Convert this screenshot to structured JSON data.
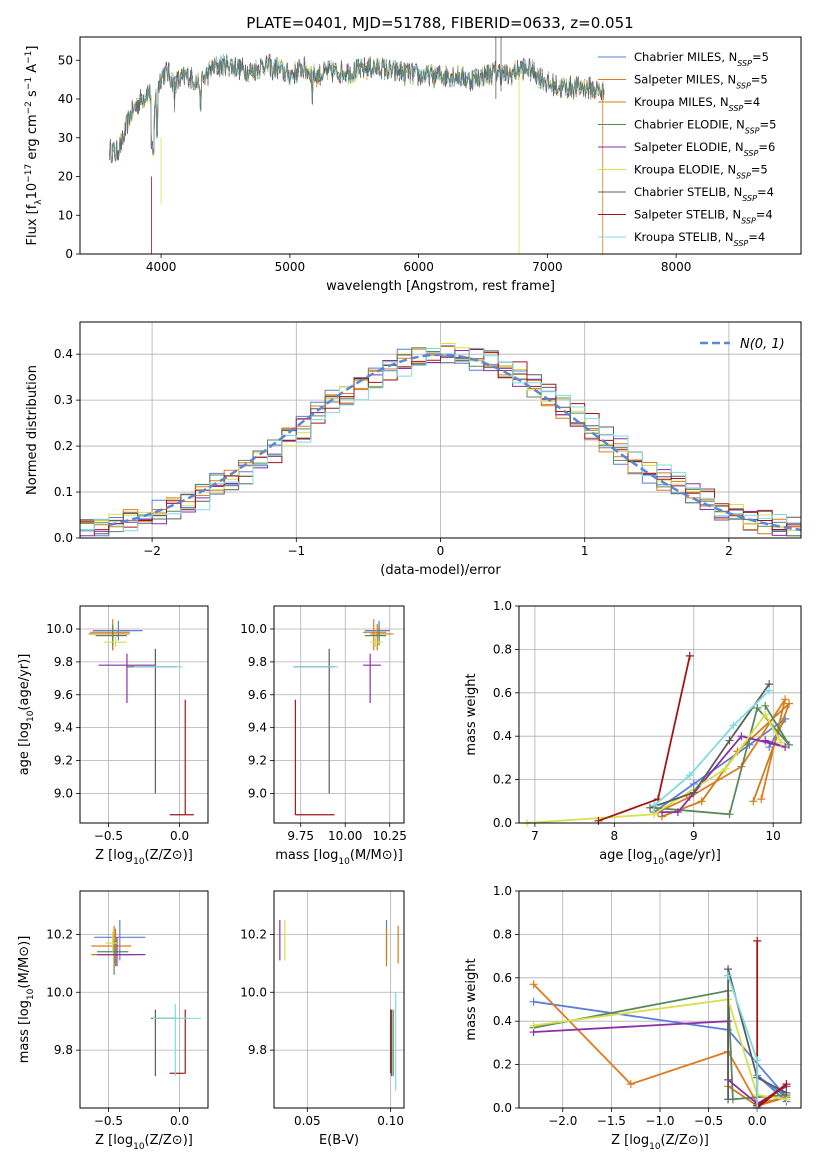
{
  "figure_title": "PLATE=0401, MJD=51788, FIBERID=0633, z=0.051",
  "fit_colors": [
    "#5b7fdb",
    "#e07a1f",
    "#cc7f17",
    "#5a8a5a",
    "#8c2fa8",
    "#d6e04a",
    "#5c5c5c",
    "#a31616",
    "#7fdbe0"
  ],
  "gaussian_color": "#5b87d6",
  "chart_data": [
    {
      "id": "spectrum",
      "type": "line",
      "xlabel": "wavelength [Angstrom, rest frame]",
      "ylabel": "Flux [f_λ10^-17 erg cm^-2 s^-1 A^-1]",
      "xlim": [
        3370,
        8970
      ],
      "ylim": [
        0,
        56
      ],
      "xticks": [
        4000,
        5000,
        6000,
        7000,
        8000
      ],
      "yticks": [
        0,
        10,
        20,
        30,
        40,
        50
      ],
      "grid": false,
      "legend_position": "top-right",
      "data_wavelength_range": [
        3600,
        7440
      ],
      "continuum": {
        "x": [
          3600,
          3650,
          3700,
          3750,
          3800,
          3850,
          3900,
          3950,
          4000,
          4050,
          4100,
          4200,
          4300,
          4400,
          4500,
          4600,
          4700,
          4800,
          4900,
          5000,
          5100,
          5200,
          5300,
          5400,
          5500,
          5600,
          5700,
          5800,
          5900,
          6000,
          6100,
          6200,
          6300,
          6400,
          6500,
          6600,
          6700,
          6800,
          6900,
          7000,
          7100,
          7200,
          7300,
          7400,
          7440
        ],
        "y": [
          27,
          26,
          29,
          35,
          38,
          40,
          42,
          39,
          46,
          47,
          44,
          46,
          44,
          48,
          49,
          48,
          47,
          49,
          48,
          46,
          48,
          46,
          47,
          47,
          47,
          48,
          48,
          47,
          47,
          46,
          46,
          46,
          46,
          45,
          46,
          47,
          46,
          48,
          47,
          44,
          43,
          43,
          43,
          42,
          42
        ]
      },
      "series": [
        {
          "name": "Chabrier MILES",
          "nssp": "5"
        },
        {
          "name": "Salpeter MILES",
          "nssp": "5"
        },
        {
          "name": "Kroupa MILES",
          "nssp": "4"
        },
        {
          "name": "Chabrier ELODIE",
          "nssp": "5"
        },
        {
          "name": "Salpeter ELODIE",
          "nssp": "6"
        },
        {
          "name": "Kroupa ELODIE",
          "nssp": "5"
        },
        {
          "name": "Chabrier STELIB",
          "nssp": "4"
        },
        {
          "name": "Salpeter STELIB",
          "nssp": "4"
        },
        {
          "name": "Kroupa STELIB",
          "nssp": "4"
        }
      ]
    },
    {
      "id": "residuals",
      "type": "histogram",
      "xlabel": "(data-model)/error",
      "ylabel": "Normed distribution",
      "xlim": [
        -2.5,
        2.5
      ],
      "ylim": [
        0,
        0.47
      ],
      "xticks": [
        -2,
        -1,
        0,
        1,
        2
      ],
      "yticks": [
        0.0,
        0.1,
        0.2,
        0.3,
        0.4
      ],
      "grid": true,
      "legend_position": "top-right",
      "legend_label": "N(0, 1)",
      "bin_width": 0.1
    },
    {
      "id": "age-vs-Z",
      "type": "errorbar",
      "xlabel": "Z [log10(Z/Z⊙)]",
      "ylabel": "age  [log10(age/yr)]",
      "xlim": [
        -0.7,
        0.2
      ],
      "ylim": [
        8.82,
        10.14
      ],
      "xticks": [
        -0.5,
        0.0
      ],
      "yticks": [
        9.0,
        9.2,
        9.4,
        9.6,
        9.8,
        10.0
      ],
      "grid": true,
      "points": [
        {
          "x": -0.43,
          "y": 9.99,
          "xerr": [
            0.18,
            0.17
          ],
          "yerr": [
            0.06,
            0.06
          ]
        },
        {
          "x": -0.47,
          "y": 9.98,
          "xerr": [
            0.16,
            0.12
          ],
          "yerr": [
            0.11,
            0.08
          ]
        },
        {
          "x": -0.47,
          "y": 9.97,
          "xerr": [
            0.17,
            0.12
          ],
          "yerr": [
            0.1,
            0.06
          ]
        },
        {
          "x": -0.47,
          "y": 9.96,
          "xerr": [
            0.12,
            0.1
          ],
          "yerr": [
            0.06,
            0.06
          ]
        },
        {
          "x": -0.37,
          "y": 9.78,
          "xerr": [
            0.2,
            0.2
          ],
          "yerr": [
            0.23,
            0.07
          ]
        },
        {
          "x": -0.45,
          "y": 9.92,
          "xerr": [
            0.08,
            0.08
          ],
          "yerr": [
            0.03,
            0.03
          ]
        },
        {
          "x": -0.17,
          "y": 9.77,
          "xerr": [
            0.2,
            0.15
          ],
          "yerr": [
            0.77,
            0.11
          ]
        },
        {
          "x": 0.04,
          "y": 8.87,
          "xerr": [
            0.11,
            0.06
          ],
          "yerr": [
            0.0,
            0.7
          ]
        },
        {
          "x": -0.16,
          "y": 9.77,
          "xerr": [
            0.16,
            0.18
          ],
          "yerr": [
            0.0,
            0.0
          ]
        }
      ]
    },
    {
      "id": "age-vs-mass",
      "type": "errorbar",
      "xlabel": "mass [log10(M/M⊙)]",
      "ylabel": "",
      "xlim": [
        9.6,
        10.33
      ],
      "ylim": [
        8.82,
        10.14
      ],
      "xticks": [
        9.75,
        10.0,
        10.25
      ],
      "yticks": [
        9.0,
        9.2,
        9.4,
        9.6,
        9.8,
        10.0
      ],
      "grid": true,
      "points": [
        {
          "x": 10.19,
          "y": 9.99,
          "xerr": [
            0.08,
            0.06
          ],
          "yerr": [
            0.06,
            0.06
          ]
        },
        {
          "x": 10.16,
          "y": 9.98,
          "xerr": [
            0.06,
            0.07
          ],
          "yerr": [
            0.11,
            0.08
          ]
        },
        {
          "x": 10.18,
          "y": 9.97,
          "xerr": [
            0.04,
            0.09
          ],
          "yerr": [
            0.1,
            0.06
          ]
        },
        {
          "x": 10.19,
          "y": 9.96,
          "xerr": [
            0.08,
            0.04
          ],
          "yerr": [
            0.06,
            0.06
          ]
        },
        {
          "x": 10.14,
          "y": 9.78,
          "xerr": [
            0.04,
            0.06
          ],
          "yerr": [
            0.23,
            0.07
          ]
        },
        {
          "x": 10.17,
          "y": 9.92,
          "xerr": [
            0.03,
            0.04
          ],
          "yerr": [
            0.03,
            0.03
          ]
        },
        {
          "x": 9.91,
          "y": 9.77,
          "xerr": [
            0.2,
            0.03
          ],
          "yerr": [
            0.77,
            0.11
          ]
        },
        {
          "x": 9.72,
          "y": 8.87,
          "xerr": [
            0.0,
            0.22
          ],
          "yerr": [
            0.0,
            0.7
          ]
        },
        {
          "x": 9.91,
          "y": 9.77,
          "xerr": [
            0.2,
            0.05
          ],
          "yerr": [
            0.0,
            0.0
          ]
        }
      ]
    },
    {
      "id": "weight-vs-age",
      "type": "line",
      "xlabel": "age  [log10(age/yr)]",
      "ylabel": "mass weight",
      "xlim": [
        6.8,
        10.35
      ],
      "ylim": [
        0,
        1.0
      ],
      "xticks": [
        7,
        8,
        9,
        10
      ],
      "yticks": [
        0.0,
        0.2,
        0.4,
        0.6,
        0.8,
        1.0
      ],
      "grid": true,
      "series": [
        {
          "x": [
            8.5,
            9.0,
            9.7,
            10.15,
            9.95
          ],
          "y": [
            0.05,
            0.18,
            0.36,
            0.48,
            0.35
          ]
        },
        {
          "x": [
            8.55,
            8.95,
            9.6,
            10.15,
            9.85
          ],
          "y": [
            0.05,
            0.12,
            0.26,
            0.57,
            0.11
          ]
        },
        {
          "x": [
            8.6,
            9.1,
            9.55,
            10.2,
            9.75
          ],
          "y": [
            0.03,
            0.1,
            0.33,
            0.55,
            0.1
          ]
        },
        {
          "x": [
            8.5,
            9.45,
            9.8,
            10.2,
            9.9
          ],
          "y": [
            0.07,
            0.04,
            0.53,
            0.36,
            0.54
          ]
        },
        {
          "x": [
            8.6,
            8.8,
            9.6,
            10.15,
            9.9
          ],
          "y": [
            0.05,
            0.05,
            0.4,
            0.35,
            0.38
          ]
        },
        {
          "x": [
            6.9,
            8.5,
            9.4,
            9.9,
            10.1
          ],
          "y": [
            0.0,
            0.04,
            0.25,
            0.5,
            0.37
          ]
        },
        {
          "x": [
            8.45,
            9.0,
            9.45,
            9.95
          ],
          "y": [
            0.07,
            0.14,
            0.38,
            0.64
          ]
        },
        {
          "x": [
            7.8,
            8.55,
            8.95
          ],
          "y": [
            0.01,
            0.11,
            0.77
          ]
        },
        {
          "x": [
            8.5,
            8.95,
            9.5,
            9.95
          ],
          "y": [
            0.08,
            0.22,
            0.45,
            0.61
          ]
        }
      ]
    },
    {
      "id": "mass-vs-Z",
      "type": "errorbar",
      "xlabel": "Z [log10(Z/Z⊙)]",
      "ylabel": "mass [log10(M/M⊙)]",
      "xlim": [
        -0.7,
        0.2
      ],
      "ylim": [
        9.6,
        10.35
      ],
      "xticks": [
        -0.5,
        0.0
      ],
      "yticks": [
        9.8,
        10.0,
        10.2
      ],
      "grid": true,
      "points": [
        {
          "x": -0.42,
          "y": 10.19,
          "xerr": [
            0.18,
            0.18
          ],
          "yerr": [
            0.08,
            0.06
          ]
        },
        {
          "x": -0.46,
          "y": 10.16,
          "xerr": [
            0.16,
            0.12
          ],
          "yerr": [
            0.06,
            0.07
          ]
        },
        {
          "x": -0.45,
          "y": 10.13,
          "xerr": [
            0.17,
            0.12
          ],
          "yerr": [
            0.04,
            0.09
          ]
        },
        {
          "x": -0.46,
          "y": 10.14,
          "xerr": [
            0.12,
            0.1
          ],
          "yerr": [
            0.08,
            0.04
          ]
        },
        {
          "x": -0.44,
          "y": 10.13,
          "xerr": [
            0.14,
            0.2
          ],
          "yerr": [
            0.04,
            0.06
          ]
        },
        {
          "x": -0.47,
          "y": 10.17,
          "xerr": [
            0.05,
            0.05
          ],
          "yerr": [
            0.03,
            0.04
          ]
        },
        {
          "x": -0.17,
          "y": 9.91,
          "xerr": [
            0.03,
            0.15
          ],
          "yerr": [
            0.2,
            0.03
          ]
        },
        {
          "x": 0.04,
          "y": 9.72,
          "xerr": [
            0.11,
            0.0
          ],
          "yerr": [
            0.0,
            0.22
          ]
        },
        {
          "x": -0.03,
          "y": 9.91,
          "xerr": [
            0.16,
            0.18
          ],
          "yerr": [
            0.2,
            0.05
          ]
        }
      ]
    },
    {
      "id": "mass-vs-EBV",
      "type": "errorbar",
      "xlabel": "E(B-V)",
      "ylabel": "",
      "xlim": [
        0.03,
        0.108
      ],
      "ylim": [
        9.6,
        10.35
      ],
      "xticks": [
        0.05,
        0.1
      ],
      "yticks": [
        9.8,
        10.0,
        10.2
      ],
      "grid": true,
      "points": [
        {
          "x": 0.0975,
          "y": 10.19,
          "xerr": [
            0,
            0
          ],
          "yerr": [
            0.08,
            0.06
          ]
        },
        {
          "x": 0.1045,
          "y": 10.16,
          "xerr": [
            0,
            0
          ],
          "yerr": [
            0.06,
            0.07
          ]
        },
        {
          "x": 0.0975,
          "y": 10.13,
          "xerr": [
            0,
            0
          ],
          "yerr": [
            0.04,
            0.09
          ]
        },
        {
          "x": 0.1015,
          "y": 9.91,
          "xerr": [
            0,
            0
          ],
          "yerr": [
            0.2,
            0.03
          ]
        },
        {
          "x": 0.0335,
          "y": 10.19,
          "xerr": [
            0,
            0
          ],
          "yerr": [
            0.08,
            0.06
          ]
        },
        {
          "x": 0.0365,
          "y": 10.17,
          "xerr": [
            0,
            0
          ],
          "yerr": [
            0.06,
            0.08
          ]
        },
        {
          "x": 0.1005,
          "y": 9.91,
          "xerr": [
            0,
            0
          ],
          "yerr": [
            0.2,
            0.03
          ]
        },
        {
          "x": 0.1,
          "y": 9.72,
          "xerr": [
            0,
            0
          ],
          "yerr": [
            0.0,
            0.22
          ]
        },
        {
          "x": 0.103,
          "y": 9.86,
          "xerr": [
            0,
            0
          ],
          "yerr": [
            0.2,
            0.14
          ]
        }
      ]
    },
    {
      "id": "weight-vs-Z",
      "type": "line",
      "xlabel": "Z [log10(Z/Z⊙)]",
      "ylabel": "mass weight",
      "xlim": [
        -2.45,
        0.45
      ],
      "ylim": [
        0,
        1.0
      ],
      "xticks": [
        -2.0,
        -1.5,
        -1.0,
        -0.5,
        0.0
      ],
      "yticks": [
        0.0,
        0.2,
        0.4,
        0.6,
        0.8,
        1.0
      ],
      "grid": true,
      "series": [
        {
          "x": [
            -2.3,
            -0.3,
            0.3,
            0.0,
            0.3
          ],
          "y": [
            0.49,
            0.36,
            0.05,
            0.15,
            0.03
          ]
        },
        {
          "x": [
            -2.3,
            -1.3,
            -0.3,
            0.0,
            0.3
          ],
          "y": [
            0.57,
            0.11,
            0.26,
            0.02,
            0.05
          ]
        },
        {
          "x": [
            -0.3,
            0.0,
            0.3
          ],
          "y": [
            0.1,
            0.01,
            0.05
          ]
        },
        {
          "x": [
            -2.3,
            -0.3,
            -0.25,
            0.0,
            0.3
          ],
          "y": [
            0.37,
            0.54,
            0.04,
            0.05,
            0.06
          ]
        },
        {
          "x": [
            -2.3,
            -0.3,
            -0.3,
            0.0,
            0.3
          ],
          "y": [
            0.35,
            0.4,
            0.13,
            0.02,
            0.1
          ]
        },
        {
          "x": [
            -2.3,
            -0.3,
            0.0,
            0.3
          ],
          "y": [
            0.38,
            0.5,
            0.06,
            0.04
          ]
        },
        {
          "x": [
            -0.3,
            -0.3,
            0.0,
            0.3
          ],
          "y": [
            0.04,
            0.64,
            0.14,
            0.07
          ]
        },
        {
          "x": [
            0.0,
            0.0,
            0.3,
            0.0
          ],
          "y": [
            0.77,
            0.0,
            0.11,
            0.01
          ]
        },
        {
          "x": [
            -0.3,
            0.0,
            0.0
          ],
          "y": [
            0.61,
            0.22,
            0.0
          ]
        }
      ]
    }
  ]
}
